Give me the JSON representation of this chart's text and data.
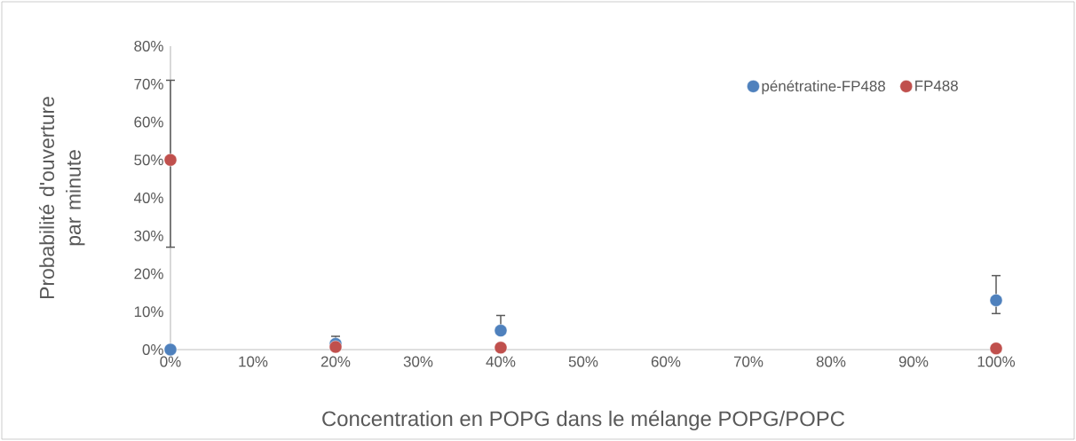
{
  "chart_data": {
    "type": "scatter",
    "xlabel": "Concentration en POPG dans le mélange POPG/POPC",
    "ylabel": "Probabilité d'ouverture par minute",
    "x": [
      0,
      20,
      40,
      100
    ],
    "series": [
      {
        "name": "pénétratine-FP488",
        "color": "#4f81bd",
        "values": [
          0,
          1.5,
          5,
          13
        ],
        "errors": [
          null,
          [
            1.5,
            3.5
          ],
          [
            5,
            9
          ],
          [
            9.5,
            19.5
          ]
        ]
      },
      {
        "name": "FP488",
        "color": "#c0504d",
        "values": [
          50,
          0.7,
          0.5,
          0.3
        ],
        "errors": [
          [
            27,
            71
          ],
          null,
          null,
          null
        ]
      }
    ],
    "xlim": [
      0,
      100
    ],
    "xticks": [
      {
        "value": 0,
        "label": "0%"
      },
      {
        "value": 10,
        "label": "10%"
      },
      {
        "value": 20,
        "label": "20%"
      },
      {
        "value": 30,
        "label": "30%"
      },
      {
        "value": 40,
        "label": "40%"
      },
      {
        "value": 50,
        "label": "50%"
      },
      {
        "value": 60,
        "label": "60%"
      },
      {
        "value": 70,
        "label": "70%"
      },
      {
        "value": 80,
        "label": "80%"
      },
      {
        "value": 90,
        "label": "90%"
      },
      {
        "value": 100,
        "label": "100%"
      }
    ],
    "ylim": [
      0,
      80
    ],
    "yticks": [
      {
        "value": 0,
        "label": "0%"
      },
      {
        "value": 10,
        "label": "10%"
      },
      {
        "value": 20,
        "label": "20%"
      },
      {
        "value": 30,
        "label": "30%"
      },
      {
        "value": 40,
        "label": "40%"
      },
      {
        "value": 50,
        "label": "50%"
      },
      {
        "value": 60,
        "label": "60%"
      },
      {
        "value": 70,
        "label": "70%"
      },
      {
        "value": 80,
        "label": "80%"
      }
    ],
    "marker": "circle",
    "legend": "top right"
  }
}
